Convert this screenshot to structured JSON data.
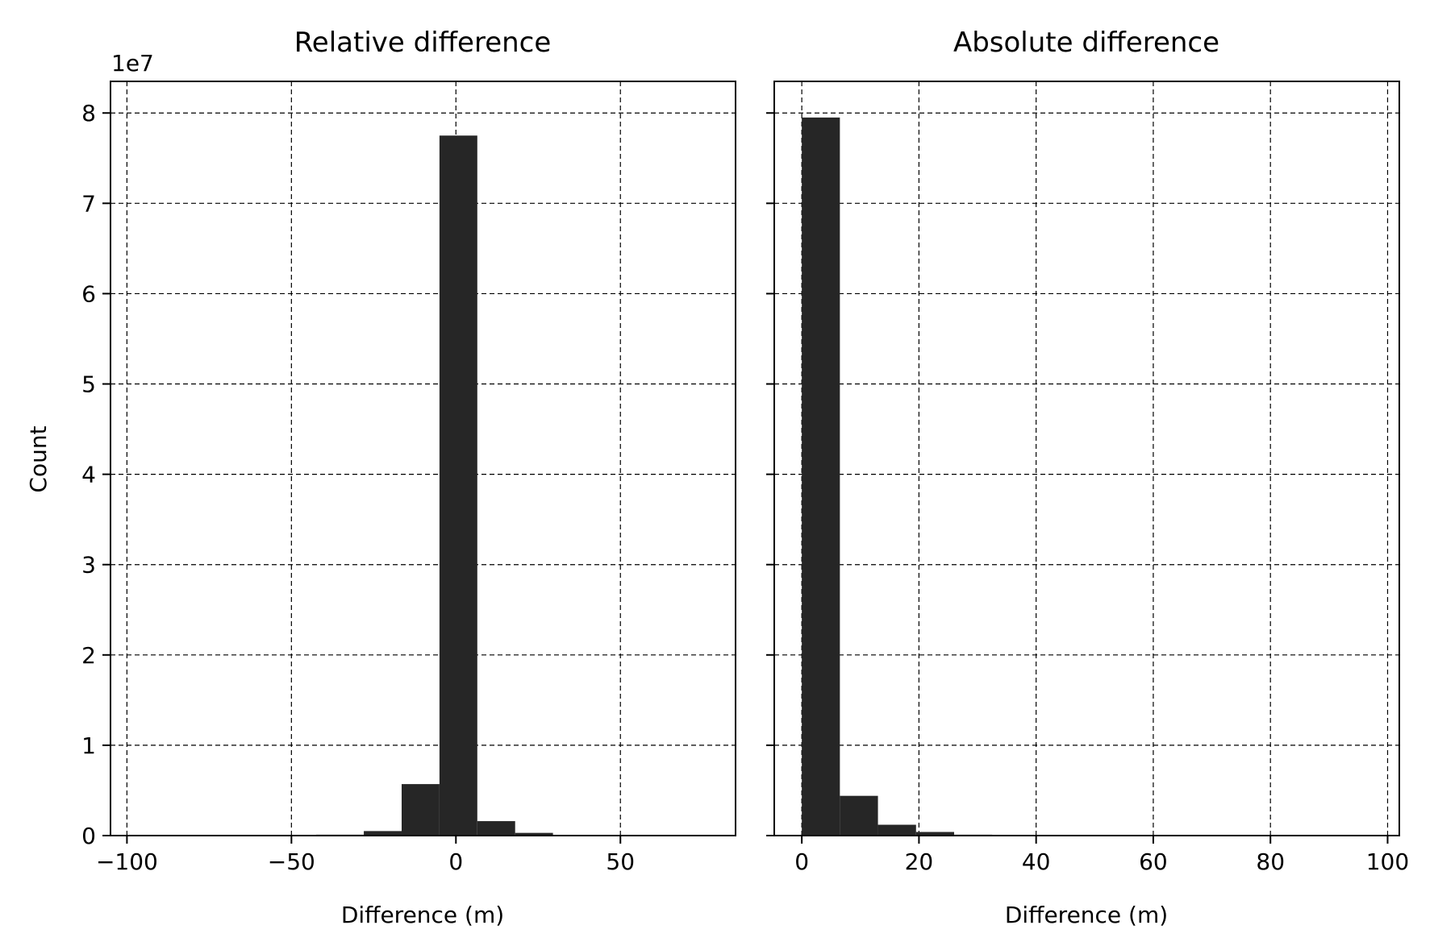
{
  "chart_data": [
    {
      "type": "bar",
      "title": "Relative difference",
      "xlabel": "Difference (m)",
      "ylabel": "Count",
      "offset_text": "1e7",
      "xlim": [
        -105,
        85
      ],
      "ylim": [
        0,
        8.35
      ],
      "xticks": [
        -100,
        -50,
        0,
        50
      ],
      "xtick_labels": [
        "−100",
        "−50",
        "0",
        "50"
      ],
      "yticks": [
        0,
        1,
        2,
        3,
        4,
        5,
        6,
        7,
        8
      ],
      "ytick_labels": [
        "0",
        "1",
        "2",
        "3",
        "4",
        "5",
        "6",
        "7",
        "8"
      ],
      "show_ytick_labels": true,
      "grid": true,
      "bar_color": "#262626",
      "bins": [
        {
          "x0": -100.0,
          "x1": -88.5,
          "value": 0.0
        },
        {
          "x0": -88.5,
          "x1": -77.0,
          "value": 0.0
        },
        {
          "x0": -77.0,
          "x1": -65.5,
          "value": 0.0
        },
        {
          "x0": -65.5,
          "x1": -54.0,
          "value": 0.0
        },
        {
          "x0": -54.0,
          "x1": -42.5,
          "value": 0.0
        },
        {
          "x0": -42.5,
          "x1": -28.0,
          "value": 0.01
        },
        {
          "x0": -28.0,
          "x1": -16.5,
          "value": 0.05
        },
        {
          "x0": -16.5,
          "x1": -5.0,
          "value": 0.57
        },
        {
          "x0": -5.0,
          "x1": 6.5,
          "value": 7.75
        },
        {
          "x0": 6.5,
          "x1": 18.0,
          "value": 0.16
        },
        {
          "x0": 18.0,
          "x1": 29.5,
          "value": 0.03
        },
        {
          "x0": 29.5,
          "x1": 41.0,
          "value": 0.005
        },
        {
          "x0": 41.0,
          "x1": 52.5,
          "value": 0.0
        },
        {
          "x0": 52.5,
          "x1": 64.0,
          "value": 0.0
        },
        {
          "x0": 64.0,
          "x1": 80.0,
          "value": 0.0
        }
      ]
    },
    {
      "type": "bar",
      "title": "Absolute difference",
      "xlabel": "Difference (m)",
      "ylabel": "",
      "offset_text": "",
      "xlim": [
        -4.7,
        102
      ],
      "ylim": [
        0,
        8.35
      ],
      "xticks": [
        0,
        20,
        40,
        60,
        80,
        100
      ],
      "xtick_labels": [
        "0",
        "20",
        "40",
        "60",
        "80",
        "100"
      ],
      "yticks": [
        0,
        1,
        2,
        3,
        4,
        5,
        6,
        7,
        8
      ],
      "ytick_labels": [],
      "show_ytick_labels": false,
      "grid": true,
      "bar_color": "#262626",
      "bins": [
        {
          "x0": 0.0,
          "x1": 6.5,
          "value": 7.95
        },
        {
          "x0": 6.5,
          "x1": 13.0,
          "value": 0.44
        },
        {
          "x0": 13.0,
          "x1": 19.5,
          "value": 0.12
        },
        {
          "x0": 19.5,
          "x1": 26.0,
          "value": 0.04
        },
        {
          "x0": 26.0,
          "x1": 32.5,
          "value": 0.01
        },
        {
          "x0": 32.5,
          "x1": 39.0,
          "value": 0.0
        },
        {
          "x0": 39.0,
          "x1": 45.5,
          "value": 0.0
        },
        {
          "x0": 45.5,
          "x1": 52.0,
          "value": 0.0
        },
        {
          "x0": 52.0,
          "x1": 58.5,
          "value": 0.0
        },
        {
          "x0": 58.5,
          "x1": 65.0,
          "value": 0.0
        },
        {
          "x0": 65.0,
          "x1": 71.5,
          "value": 0.0
        },
        {
          "x0": 71.5,
          "x1": 78.0,
          "value": 0.0
        },
        {
          "x0": 78.0,
          "x1": 84.5,
          "value": 0.0
        },
        {
          "x0": 84.5,
          "x1": 91.0,
          "value": 0.0
        },
        {
          "x0": 91.0,
          "x1": 100.0,
          "value": 0.0
        }
      ]
    }
  ]
}
